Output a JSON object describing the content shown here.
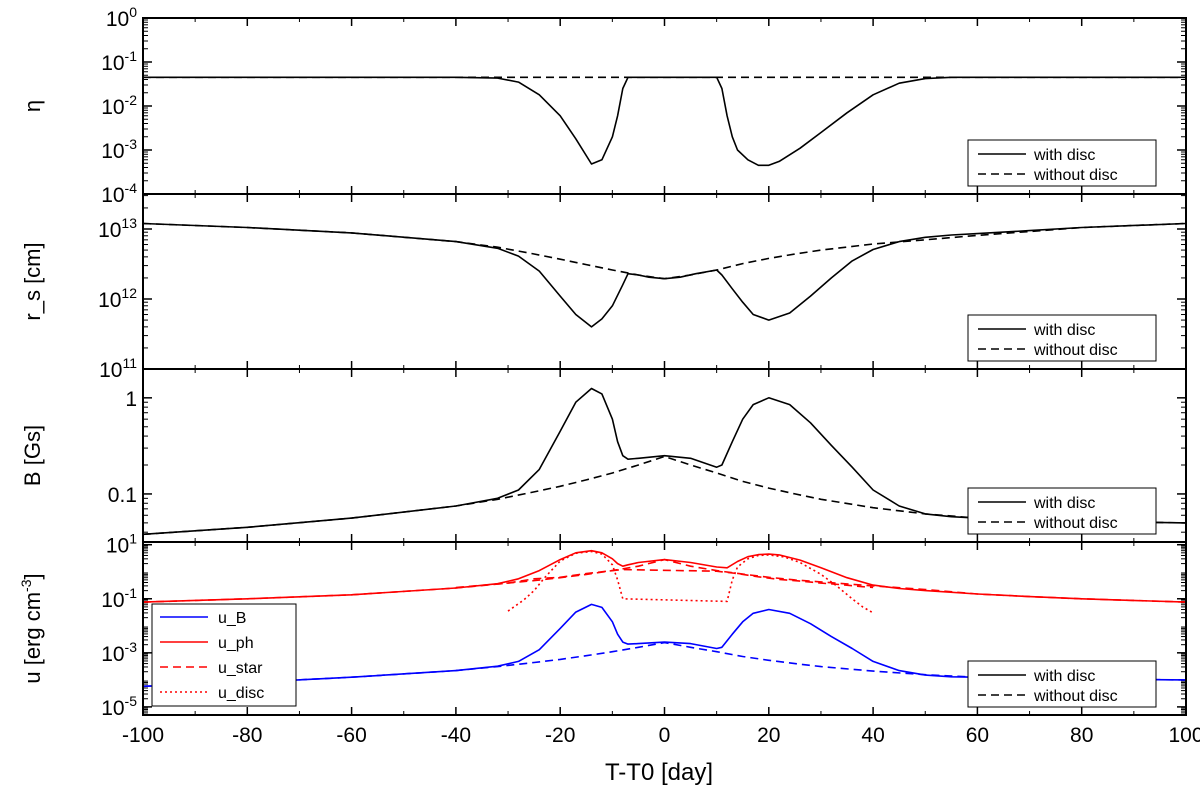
{
  "chart_data": {
    "type": "line",
    "xlabel": "T-T0 [day]",
    "xlim": [
      -100,
      100
    ],
    "xticks": [
      -100,
      -80,
      -60,
      -40,
      -20,
      0,
      20,
      40,
      60,
      80,
      100
    ],
    "panels": [
      {
        "id": "eta",
        "ylabel": "η",
        "yscale": "log",
        "ylim_exp": [
          -4,
          0
        ],
        "ticks": [
          {
            "base": "10",
            "exp": "0",
            "e": 0
          },
          {
            "base": "10",
            "exp": "-1",
            "e": -1
          },
          {
            "base": "10",
            "exp": "-2",
            "e": -2
          },
          {
            "base": "10",
            "exp": "-3",
            "e": -3
          },
          {
            "base": "10",
            "exp": "-4",
            "e": -4
          }
        ],
        "legend": {
          "items": [
            {
              "label": "with disc",
              "style": "solid",
              "color": "#000000"
            },
            {
              "label": "without disc",
              "style": "dashed",
              "color": "#000000"
            }
          ]
        },
        "series": [
          {
            "name": "with disc",
            "style": "solid",
            "color": "#000000",
            "x": [
              -100,
              -40,
              -32,
              -28,
              -24,
              -20,
              -17,
              -14,
              -12,
              -10,
              -9,
              -8,
              -7,
              10,
              11,
              12,
              13,
              14,
              16,
              18,
              20,
              22,
              26,
              30,
              35,
              40,
              45,
              50,
              55,
              60,
              65,
              100
            ],
            "y": [
              0.045,
              0.045,
              0.043,
              0.035,
              0.018,
              0.006,
              0.0018,
              0.00048,
              0.0006,
              0.002,
              0.006,
              0.025,
              0.045,
              0.045,
              0.025,
              0.006,
              0.002,
              0.001,
              0.0006,
              0.00045,
              0.00045,
              0.00055,
              0.0011,
              0.0025,
              0.007,
              0.018,
              0.033,
              0.042,
              0.045,
              0.045,
              0.045,
              0.045
            ]
          },
          {
            "name": "without disc",
            "style": "dashed",
            "color": "#000000",
            "x": [
              -100,
              100
            ],
            "y": [
              0.045,
              0.045
            ]
          }
        ]
      },
      {
        "id": "rs",
        "ylabel": "r_s [cm]",
        "yscale": "log",
        "ylim_exp": [
          11,
          13.5
        ],
        "ticks": [
          {
            "base": "10",
            "exp": "13",
            "e": 13
          },
          {
            "base": "10",
            "exp": "12",
            "e": 12
          },
          {
            "base": "10",
            "exp": "11",
            "e": 11
          }
        ],
        "legend": {
          "items": [
            {
              "label": "with disc",
              "style": "solid",
              "color": "#000000"
            },
            {
              "label": "without disc",
              "style": "dashed",
              "color": "#000000"
            }
          ]
        },
        "series": [
          {
            "name": "with disc",
            "style": "solid",
            "color": "#000000",
            "x": [
              -100,
              -80,
              -60,
              -40,
              -32,
              -28,
              -24,
              -20,
              -17,
              -14,
              -12,
              -10,
              -8,
              -7,
              -5,
              -3,
              0,
              3,
              6,
              10,
              11,
              13,
              15,
              17,
              20,
              24,
              28,
              32,
              36,
              40,
              45,
              50,
              55,
              60,
              70,
              80,
              100
            ],
            "y": [
              12000000000000.0,
              10500000000000.0,
              8800000000000.0,
              6600000000000.0,
              5300000000000.0,
              4100000000000.0,
              2500000000000.0,
              1100000000000.0,
              600000000000.0,
              400000000000.0,
              520000000000.0,
              800000000000.0,
              1600000000000.0,
              2300000000000.0,
              2200000000000.0,
              2050000000000.0,
              1950000000000.0,
              2050000000000.0,
              2300000000000.0,
              2600000000000.0,
              2200000000000.0,
              1400000000000.0,
              900000000000.0,
              600000000000.0,
              500000000000.0,
              630000000000.0,
              1100000000000.0,
              2000000000000.0,
              3500000000000.0,
              5100000000000.0,
              6600000000000.0,
              7600000000000.0,
              8200000000000.0,
              8600000000000.0,
              9500000000000.0,
              10500000000000.0,
              12000000000000.0
            ]
          },
          {
            "name": "without disc",
            "style": "dashed",
            "color": "#000000",
            "x": [
              -100,
              -80,
              -60,
              -40,
              -32,
              -25,
              -20,
              -15,
              -10,
              -5,
              0,
              5,
              10,
              15,
              20,
              25,
              30,
              40,
              50,
              60,
              70,
              80,
              100
            ],
            "y": [
              12000000000000.0,
              10500000000000.0,
              8800000000000.0,
              6600000000000.0,
              5500000000000.0,
              4400000000000.0,
              3700000000000.0,
              3100000000000.0,
              2600000000000.0,
              2200000000000.0,
              1950000000000.0,
              2200000000000.0,
              2600000000000.0,
              3200000000000.0,
              3800000000000.0,
              4400000000000.0,
              5000000000000.0,
              6100000000000.0,
              7000000000000.0,
              8100000000000.0,
              9200000000000.0,
              10500000000000.0,
              12000000000000.0
            ]
          }
        ]
      },
      {
        "id": "B",
        "ylabel": "B [Gs]",
        "yscale": "log",
        "ylim_exp": [
          -1.5,
          0.3
        ],
        "ticks": [
          {
            "base": "1",
            "exp": "",
            "e": 0
          },
          {
            "base": "0.1",
            "exp": "",
            "e": -1
          }
        ],
        "legend": {
          "items": [
            {
              "label": "with disc",
              "style": "solid",
              "color": "#000000"
            },
            {
              "label": "without disc",
              "style": "dashed",
              "color": "#000000"
            }
          ]
        },
        "series": [
          {
            "name": "with disc",
            "style": "solid",
            "color": "#000000",
            "x": [
              -100,
              -80,
              -60,
              -40,
              -32,
              -28,
              -24,
              -20,
              -17,
              -14,
              -12,
              -10,
              -9,
              -8,
              -7,
              -5,
              0,
              5,
              10,
              11,
              13,
              15,
              17,
              20,
              24,
              28,
              32,
              36,
              40,
              45,
              50,
              55,
              60,
              65,
              70,
              80,
              100
            ],
            "y": [
              0.038,
              0.045,
              0.056,
              0.075,
              0.09,
              0.11,
              0.18,
              0.45,
              0.9,
              1.25,
              1.1,
              0.6,
              0.35,
              0.25,
              0.23,
              0.235,
              0.25,
              0.235,
              0.19,
              0.2,
              0.35,
              0.6,
              0.85,
              1.0,
              0.85,
              0.55,
              0.32,
              0.19,
              0.11,
              0.075,
              0.062,
              0.058,
              0.056,
              0.055,
              0.054,
              0.052,
              0.05
            ]
          },
          {
            "name": "without disc",
            "style": "dashed",
            "color": "#000000",
            "x": [
              -100,
              -80,
              -60,
              -40,
              -32,
              -25,
              -20,
              -15,
              -10,
              -5,
              0,
              5,
              10,
              15,
              20,
              25,
              30,
              40,
              50,
              60,
              70,
              80,
              100
            ],
            "y": [
              0.038,
              0.045,
              0.056,
              0.075,
              0.088,
              0.105,
              0.12,
              0.14,
              0.165,
              0.2,
              0.245,
              0.2,
              0.165,
              0.135,
              0.115,
              0.1,
              0.088,
              0.072,
              0.062,
              0.056,
              0.054,
              0.052,
              0.05
            ]
          }
        ]
      },
      {
        "id": "u",
        "ylabel": "u [erg cm",
        "ylabel_sup": "-3",
        "ylabel_tail": "]",
        "yscale": "log",
        "ylim_exp": [
          -5.3,
          1.1
        ],
        "ticks": [
          {
            "base": "10",
            "exp": "1",
            "e": 1
          },
          {
            "base": "10",
            "exp": "-1",
            "e": -1
          },
          {
            "base": "10",
            "exp": "-3",
            "e": -3
          },
          {
            "base": "10",
            "exp": "-5",
            "e": -5
          }
        ],
        "legend_left": {
          "items": [
            {
              "label": "u_B",
              "style": "solid",
              "color": "#0000ff"
            },
            {
              "label": "u_ph",
              "style": "solid",
              "color": "#ff0000"
            },
            {
              "label": "u_star",
              "style": "dashed",
              "color": "#ff0000"
            },
            {
              "label": "u_disc",
              "style": "dotted",
              "color": "#ff0000"
            }
          ]
        },
        "legend": {
          "items": [
            {
              "label": "with disc",
              "style": "solid",
              "color": "#000000"
            },
            {
              "label": "without disc",
              "style": "dashed",
              "color": "#000000"
            }
          ]
        },
        "series": [
          {
            "name": "u_B with disc",
            "style": "solid",
            "color": "#0000ff",
            "x": [
              -100,
              -80,
              -60,
              -40,
              -32,
              -28,
              -24,
              -20,
              -17,
              -14,
              -12,
              -10,
              -9,
              -8,
              -7,
              -5,
              0,
              5,
              10,
              11,
              13,
              15,
              17,
              20,
              24,
              28,
              32,
              36,
              40,
              45,
              50,
              55,
              60,
              65,
              70,
              80,
              100
            ],
            "y": [
              5.8e-05,
              8e-05,
              0.000125,
              0.00022,
              0.00032,
              0.00048,
              0.0013,
              0.008,
              0.032,
              0.062,
              0.048,
              0.014,
              0.0049,
              0.0025,
              0.0021,
              0.0022,
              0.0025,
              0.0022,
              0.00145,
              0.0016,
              0.0049,
              0.014,
              0.029,
              0.04,
              0.029,
              0.012,
              0.004,
              0.00145,
              0.00048,
              0.00022,
              0.00015,
              0.00013,
              0.000125,
              0.00012,
              0.000115,
              0.000107,
              0.0001
            ]
          },
          {
            "name": "u_B without disc",
            "style": "dashed",
            "color": "#0000ff",
            "x": [
              -100,
              -80,
              -60,
              -40,
              -32,
              -25,
              -20,
              -15,
              -10,
              -5,
              0,
              5,
              10,
              15,
              20,
              25,
              30,
              40,
              50,
              60,
              70,
              80,
              100
            ],
            "y": [
              5.8e-05,
              8e-05,
              0.000125,
              0.00022,
              0.00031,
              0.00044,
              0.00057,
              0.00078,
              0.0011,
              0.0016,
              0.0024,
              0.0016,
              0.0011,
              0.00073,
              0.00053,
              0.0004,
              0.00031,
              0.00021,
              0.000155,
              0.000125,
              0.000115,
              0.000107,
              0.0001
            ]
          },
          {
            "name": "u_ph with disc",
            "style": "solid",
            "color": "#ff0000",
            "x": [
              -100,
              -80,
              -60,
              -40,
              -32,
              -28,
              -24,
              -20,
              -17,
              -14,
              -12,
              -10,
              -9,
              -8,
              -7,
              -5,
              0,
              5,
              10,
              12,
              14,
              16,
              18,
              20,
              22,
              26,
              30,
              35,
              40,
              45,
              50,
              60,
              70,
              80,
              100
            ],
            "y": [
              0.075,
              0.1,
              0.14,
              0.25,
              0.36,
              0.55,
              1.1,
              2.8,
              5,
              6,
              5,
              3,
              2,
              1.6,
              1.8,
              2.2,
              2.8,
              2.2,
              1.5,
              1.4,
              2.4,
              3.6,
              4.3,
              4.5,
              4.2,
              2.7,
              1.4,
              0.6,
              0.32,
              0.24,
              0.2,
              0.15,
              0.12,
              0.1,
              0.075
            ]
          },
          {
            "name": "u_ph without disc",
            "style": "dashed",
            "color": "#ff0000",
            "x": [
              -100,
              -80,
              -60,
              -40,
              -32,
              -25,
              -20,
              -15,
              -10,
              -5,
              0,
              5,
              10,
              15,
              20,
              25,
              30,
              40,
              50,
              60,
              70,
              80,
              100
            ],
            "y": [
              0.075,
              0.1,
              0.14,
              0.25,
              0.35,
              0.47,
              0.6,
              0.8,
              1.1,
              1.6,
              2.8,
              1.6,
              1.1,
              0.82,
              0.62,
              0.5,
              0.42,
              0.3,
              0.22,
              0.15,
              0.12,
              0.1,
              0.075
            ]
          },
          {
            "name": "u_star",
            "style": "dashed",
            "color": "#ff0000",
            "x": [
              -40,
              -30,
              -25,
              -20,
              -15,
              -10,
              -8,
              10,
              14,
              18,
              22,
              26,
              30,
              34,
              38,
              40
            ],
            "y": [
              0.26,
              0.38,
              0.55,
              0.62,
              0.85,
              1.1,
              1.2,
              1.05,
              0.85,
              0.65,
              0.52,
              0.45,
              0.38,
              0.33,
              0.28,
              0.26
            ]
          },
          {
            "name": "u_disc",
            "style": "dotted",
            "color": "#ff0000",
            "x": [
              -30,
              -27,
              -25,
              -23,
              -20,
              -17,
              -14,
              -12,
              -10,
              -9,
              -8,
              12,
              13,
              14,
              16,
              18,
              20,
              23,
              26,
              30,
              33,
              36,
              38,
              40
            ],
            "y": [
              0.035,
              0.09,
              0.2,
              0.6,
              2.5,
              4.8,
              5.6,
              4.5,
              1.8,
              0.5,
              0.1,
              0.08,
              0.5,
              1.5,
              3,
              4,
              4.2,
              3.5,
              2.2,
              0.8,
              0.3,
              0.1,
              0.05,
              0.03
            ]
          }
        ]
      }
    ]
  }
}
